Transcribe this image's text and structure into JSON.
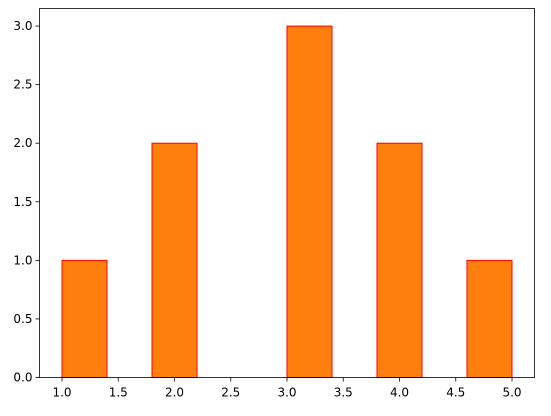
{
  "chart_data": {
    "type": "histogram",
    "bins": [
      1.0,
      1.4,
      1.8,
      2.2,
      2.6,
      3.0,
      3.4,
      3.8,
      4.2,
      4.6,
      5.0
    ],
    "values": [
      1,
      0,
      2,
      0,
      0,
      3,
      0,
      2,
      0,
      1
    ],
    "color": "#ff7f0e",
    "edgecolor": "#ff0000",
    "xlim": [
      0.8,
      5.2
    ],
    "xticks": [
      {
        "value": 1,
        "label": "1.0"
      },
      {
        "value": 1.5,
        "label": "1.5"
      },
      {
        "value": 2,
        "label": "2.0"
      },
      {
        "value": 2.5,
        "label": "2.5"
      },
      {
        "value": 3,
        "label": "3.0"
      },
      {
        "value": 3.5,
        "label": "3.5"
      },
      {
        "value": 4,
        "label": "4.0"
      },
      {
        "value": 4.5,
        "label": "4.5"
      },
      {
        "value": 5,
        "label": "5.0"
      }
    ],
    "ylim": [
      0,
      3.15
    ],
    "yticks": [
      {
        "value": 0,
        "label": "0.0"
      },
      {
        "value": 0.5,
        "label": "0.5"
      },
      {
        "value": 1,
        "label": "1.0"
      },
      {
        "value": 1.5,
        "label": "1.5"
      },
      {
        "value": 2,
        "label": "2.0"
      },
      {
        "value": 2.5,
        "label": "2.5"
      },
      {
        "value": 3,
        "label": "3.0"
      }
    ],
    "grid": false
  }
}
